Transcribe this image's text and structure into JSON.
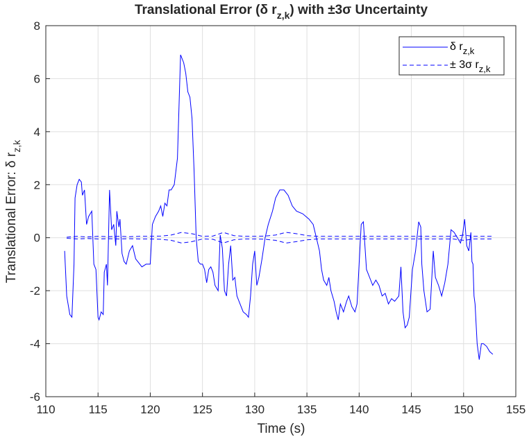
{
  "chart_data": {
    "type": "line",
    "title": [
      "Translational Error (δ r",
      "z,k",
      ") with ±3σ Uncertainty"
    ],
    "xlabel": "Time (s)",
    "ylabel": [
      "Translational Error: δ r",
      "z,k"
    ],
    "xlim": [
      110,
      155
    ],
    "ylim": [
      -6,
      8
    ],
    "xticks": [
      110,
      115,
      120,
      125,
      130,
      135,
      140,
      145,
      150,
      155
    ],
    "yticks": [
      -6,
      -4,
      -2,
      0,
      2,
      4,
      6,
      8
    ],
    "grid": true,
    "legend": "upper right",
    "series": [
      {
        "name": "δ r",
        "subscript": "z,k",
        "color": "#0000ff",
        "style": "solid",
        "x": [
          111.8,
          112.0,
          112.3,
          112.5,
          112.7,
          112.8,
          113.0,
          113.2,
          113.4,
          113.5,
          113.7,
          113.9,
          114.1,
          114.4,
          114.6,
          114.8,
          115.0,
          115.1,
          115.3,
          115.5,
          115.6,
          115.8,
          115.9,
          116.1,
          116.3,
          116.5,
          116.7,
          116.8,
          117.0,
          117.1,
          117.3,
          117.5,
          117.7,
          118.0,
          118.3,
          118.6,
          118.8,
          119.2,
          119.6,
          120.0,
          120.2,
          120.5,
          120.8,
          121.0,
          121.2,
          121.4,
          121.6,
          121.8,
          122.0,
          122.3,
          122.6,
          122.9,
          123.2,
          123.4,
          123.6,
          123.8,
          124.0,
          124.2,
          124.4,
          124.6,
          124.8,
          125.0,
          125.2,
          125.4,
          125.6,
          125.8,
          126.0,
          126.2,
          126.5,
          126.7,
          126.9,
          127.1,
          127.3,
          127.5,
          127.7,
          127.9,
          128.1,
          128.3,
          128.6,
          128.9,
          129.2,
          129.4,
          129.6,
          129.8,
          130.0,
          130.2,
          130.4,
          130.7,
          131.0,
          131.3,
          131.7,
          132.0,
          132.4,
          132.8,
          133.2,
          133.6,
          134.0,
          134.6,
          135.2,
          135.6,
          135.9,
          136.2,
          136.4,
          136.6,
          136.9,
          137.1,
          137.3,
          137.6,
          137.8,
          138.0,
          138.2,
          138.5,
          138.8,
          139.0,
          139.3,
          139.6,
          139.8,
          140.0,
          140.2,
          140.4,
          140.7,
          141.0,
          141.3,
          141.6,
          141.9,
          142.2,
          142.5,
          142.8,
          143.1,
          143.4,
          143.8,
          144.0,
          144.2,
          144.4,
          144.6,
          144.8,
          145.1,
          145.4,
          145.7,
          145.9,
          146.0,
          146.2,
          146.5,
          146.8,
          147.1,
          147.3,
          147.6,
          147.9,
          148.2,
          148.5,
          148.8,
          149.1,
          149.4,
          149.7,
          149.9,
          150.1,
          150.3,
          150.5,
          150.7,
          150.8,
          150.9,
          151.0,
          151.1,
          151.3,
          151.5,
          151.7,
          151.9,
          152.2,
          152.5,
          152.8
        ],
        "values": [
          -0.5,
          -2.2,
          -2.9,
          -3.0,
          -1.0,
          1.5,
          2.0,
          2.2,
          2.1,
          1.6,
          1.8,
          0.5,
          0.8,
          1.0,
          -1.0,
          -1.2,
          -3.0,
          -3.1,
          -2.8,
          -2.9,
          -1.3,
          -1.0,
          -1.8,
          1.8,
          0.3,
          0.5,
          -0.3,
          1.0,
          0.4,
          0.7,
          -0.6,
          -0.9,
          -1.0,
          -0.5,
          -0.3,
          -0.8,
          -0.9,
          -1.1,
          -1.0,
          -1.0,
          0.5,
          0.8,
          1.0,
          1.2,
          0.8,
          1.3,
          1.2,
          1.8,
          1.8,
          2.0,
          3.0,
          6.9,
          6.6,
          6.2,
          5.5,
          5.3,
          4.5,
          2.5,
          0.0,
          -0.9,
          -1.0,
          -1.0,
          -1.2,
          -1.7,
          -1.2,
          -1.1,
          -1.3,
          -1.8,
          -2.0,
          0.1,
          -0.4,
          -2.0,
          -2.2,
          -1.0,
          -0.3,
          -1.6,
          -1.5,
          -2.2,
          -2.5,
          -2.8,
          -2.9,
          -3.0,
          -2.2,
          -1.0,
          -0.5,
          -1.8,
          -1.5,
          -0.8,
          0.0,
          0.5,
          1.0,
          1.5,
          1.8,
          1.8,
          1.6,
          1.2,
          1.0,
          0.9,
          0.7,
          0.5,
          0.0,
          -0.5,
          -1.2,
          -1.6,
          -1.8,
          -1.5,
          -2.0,
          -2.4,
          -2.8,
          -3.1,
          -2.5,
          -2.8,
          -2.4,
          -2.2,
          -2.6,
          -2.8,
          -2.5,
          -1.0,
          0.5,
          0.6,
          -1.2,
          -1.5,
          -1.8,
          -1.6,
          -1.8,
          -2.2,
          -2.1,
          -2.5,
          -2.3,
          -2.4,
          -2.2,
          -1.1,
          -2.8,
          -3.4,
          -3.3,
          -3.0,
          -1.2,
          -0.5,
          0.6,
          0.4,
          -1.0,
          -2.0,
          -2.8,
          -2.7,
          -0.5,
          -1.5,
          -1.8,
          -2.2,
          -1.7,
          -1.0,
          0.3,
          0.2,
          0.0,
          -0.2,
          0.1,
          0.7,
          -0.3,
          -0.5,
          0.2,
          -0.9,
          -1.0,
          -2.2,
          -2.5,
          -4.0,
          -4.6,
          -4.0,
          -4.0,
          -4.1,
          -4.3,
          -4.4
        ]
      },
      {
        "name": "± 3σ r",
        "subscript": "z,k",
        "color": "#0000ff",
        "style": "dashed",
        "x": [
          112,
          113,
          114,
          115,
          116,
          117,
          118,
          119,
          120,
          121,
          122,
          123,
          124,
          125,
          126,
          127,
          128,
          129,
          130,
          131,
          132,
          133,
          134,
          135,
          136,
          137,
          138,
          139,
          140,
          141,
          142,
          143,
          144,
          145,
          146,
          147,
          148,
          149,
          150,
          151,
          152,
          152.8
        ],
        "values": [
          0.02,
          0.05,
          0.03,
          0.05,
          0.04,
          0.05,
          0.04,
          0.05,
          0.05,
          0.06,
          0.1,
          0.2,
          0.15,
          0.05,
          0.06,
          0.2,
          0.08,
          0.05,
          0.05,
          0.06,
          0.1,
          0.2,
          0.15,
          0.08,
          0.05,
          0.05,
          0.05,
          0.05,
          0.05,
          0.05,
          0.05,
          0.05,
          0.05,
          0.05,
          0.05,
          0.05,
          0.05,
          0.05,
          0.1,
          0.05,
          0.05,
          0.05
        ],
        "lower": [
          -0.02,
          -0.05,
          -0.03,
          -0.05,
          -0.04,
          -0.05,
          -0.04,
          -0.05,
          -0.05,
          -0.06,
          -0.1,
          -0.2,
          -0.15,
          -0.05,
          -0.06,
          -0.2,
          -0.08,
          -0.05,
          -0.05,
          -0.06,
          -0.1,
          -0.2,
          -0.15,
          -0.08,
          -0.05,
          -0.05,
          -0.05,
          -0.05,
          -0.05,
          -0.05,
          -0.05,
          -0.05,
          -0.05,
          -0.05,
          -0.05,
          -0.05,
          -0.05,
          -0.05,
          -0.1,
          -0.05,
          -0.05,
          -0.05
        ]
      }
    ]
  }
}
